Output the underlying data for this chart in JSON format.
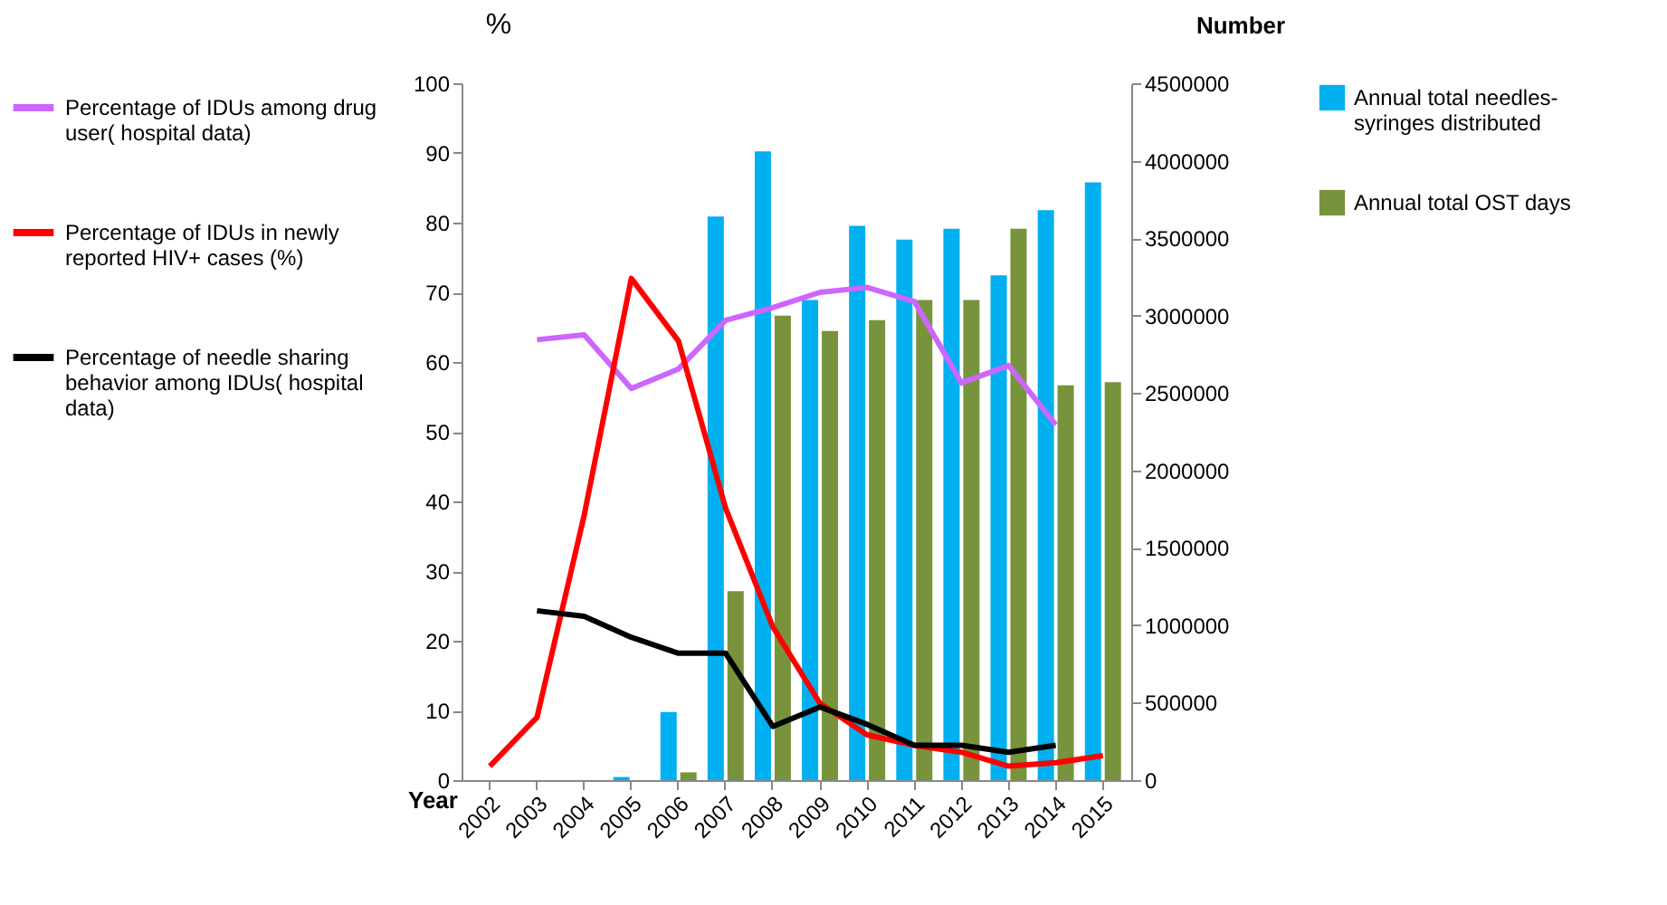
{
  "chart_data": {
    "type": "bar",
    "xlabel": "Year",
    "ylabel": "%",
    "y2label": "Number",
    "categories": [
      "2002",
      "2003",
      "2004",
      "2005",
      "2006",
      "2007",
      "2008",
      "2009",
      "2010",
      "2011",
      "2012",
      "2013",
      "2014",
      "2015"
    ],
    "series": [
      {
        "name": "Percentage of IDUs among drug user( hospital data)",
        "type": "line",
        "axis": "y",
        "color": "#cc66ff",
        "values": [
          null,
          63.2,
          63.9,
          56.2,
          59,
          66,
          67.8,
          70,
          70.7,
          68.7,
          57,
          59.5,
          51,
          null
        ]
      },
      {
        "name": "Percentage of IDUs in newly reported HIV+ cases (%)",
        "type": "line",
        "axis": "y",
        "color": "#ff0000",
        "values": [
          2,
          9,
          38,
          72,
          63,
          39,
          22,
          11,
          6.5,
          5,
          4,
          2,
          2.5,
          3.5
        ]
      },
      {
        "name": "Percentage of needle sharing behavior among IDUs( hospital data)",
        "type": "line",
        "axis": "y",
        "color": "#000000",
        "values": [
          null,
          24.3,
          23.5,
          20.5,
          18.2,
          18.2,
          7.7,
          10.5,
          8,
          5,
          5,
          4,
          5,
          null
        ]
      },
      {
        "name": "Annual total needles-syringes distributed",
        "axis": "y2",
        "color": "#00b0f0",
        "values": [
          null,
          null,
          null,
          20000,
          440000,
          3640000,
          4060000,
          3100000,
          3580000,
          3490000,
          3560000,
          3260000,
          3680000,
          3860000
        ]
      },
      {
        "name": "Annual total OST days",
        "axis": "y2",
        "color": "#77933c",
        "values": [
          null,
          null,
          null,
          null,
          50000,
          1220000,
          3000000,
          2900000,
          2970000,
          3100000,
          3100000,
          3560000,
          2550000,
          2570000
        ]
      }
    ],
    "ylim": [
      0,
      100
    ],
    "yticks": [
      0,
      10,
      20,
      30,
      40,
      50,
      60,
      70,
      80,
      90,
      100
    ],
    "y2lim": [
      0,
      4500000
    ],
    "y2ticks": [
      0,
      500000,
      1000000,
      1500000,
      2000000,
      2500000,
      3000000,
      3500000,
      4000000,
      4500000
    ],
    "legend": "left",
    "grid": false
  }
}
